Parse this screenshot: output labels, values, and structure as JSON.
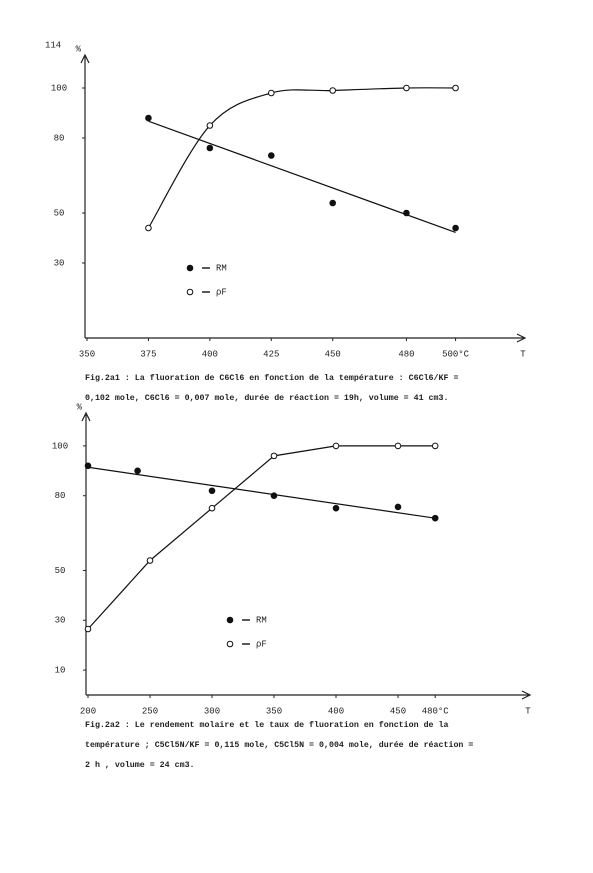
{
  "page_number": "114",
  "chart_data": [
    {
      "type": "line",
      "y_label": "%",
      "x_label": "T",
      "x": [
        375,
        400,
        425,
        450,
        480,
        500
      ],
      "series": [
        {
          "name": "RM",
          "color": "#111111",
          "marker": "filled",
          "line": "fit",
          "values": [
            88,
            76,
            73,
            54,
            50,
            44
          ]
        },
        {
          "name": "ρF",
          "color": "#111111",
          "marker": "open",
          "line": "smooth",
          "values": [
            44,
            85,
            98,
            99,
            100,
            100
          ]
        }
      ],
      "xlim": [
        350,
        525
      ],
      "ylim": [
        0,
        110
      ],
      "xticks": [
        350,
        375,
        400,
        425,
        450,
        480,
        {
          "value": 500,
          "label": "500°C"
        }
      ],
      "yticks": [
        30,
        50,
        80,
        100
      ],
      "caption": [
        "Fig.2a1 : La fluoration de C6Cl6 en fonction de la température : C6Cl6/KF =",
        "0,102 mole, C6Cl6 = 0,007 mole, durée de réaction = 19h, volume = 41 cm3."
      ]
    },
    {
      "type": "line",
      "y_label": "%",
      "x_label": "T",
      "x": [
        200,
        240,
        250,
        300,
        350,
        400,
        450,
        480
      ],
      "series": [
        {
          "name": "RM",
          "color": "#111111",
          "marker": "filled",
          "line": "fit",
          "values": [
            92,
            90,
            null,
            82,
            80,
            75,
            75.5,
            71
          ]
        },
        {
          "name": "ρF",
          "color": "#111111",
          "marker": "open",
          "line": "straight",
          "values": [
            26.5,
            null,
            54,
            75,
            96,
            100,
            100,
            100
          ]
        }
      ],
      "xlim": [
        200,
        550
      ],
      "ylim": [
        0,
        110
      ],
      "xticks": [
        200,
        250,
        300,
        350,
        400,
        450,
        {
          "value": 480,
          "label": "480°C"
        }
      ],
      "yticks": [
        10,
        30,
        50,
        80,
        100
      ],
      "caption": [
        "Fig.2a2 : Le rendement molaire et le taux de fluoration en fonction de la",
        "température ; C5Cl5N/KF = 0,115 mole, C5Cl5N = 0,004 mole, durée de réaction =",
        "2 h , volume = 24 cm3."
      ]
    }
  ]
}
